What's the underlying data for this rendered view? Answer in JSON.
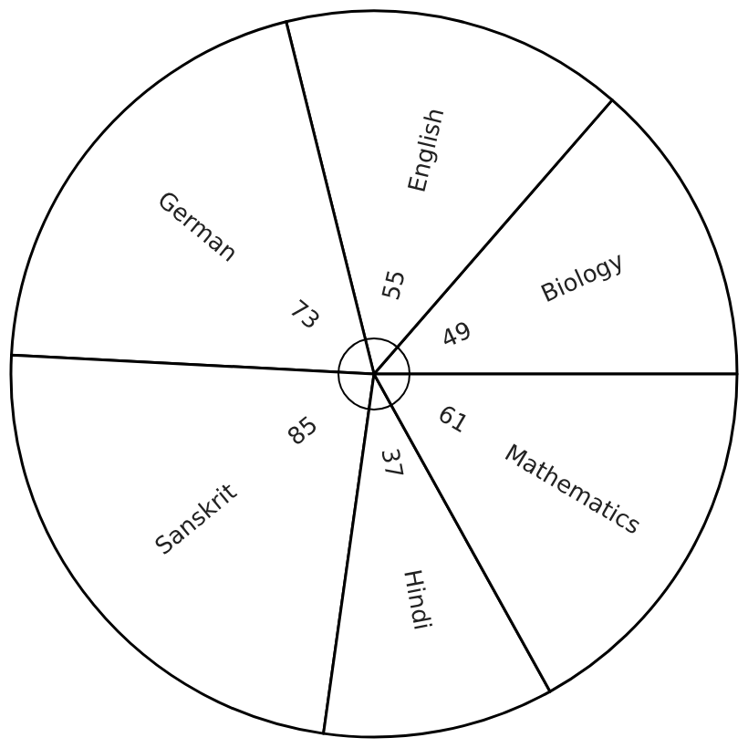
{
  "chart_data": {
    "type": "pie",
    "categories": [
      "Biology",
      "English",
      "German",
      "Sanskrit",
      "Hindi",
      "Mathematics"
    ],
    "values": [
      49,
      55,
      73,
      85,
      37,
      61
    ],
    "colors": [
      "#ffffff",
      "#ffffff",
      "#ffffff",
      "#ffffff",
      "#ffffff",
      "#ffffff"
    ],
    "data_labels": true
  }
}
